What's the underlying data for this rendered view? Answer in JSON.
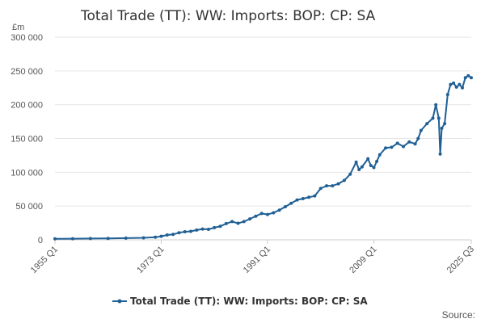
{
  "chart_data": {
    "type": "line",
    "title": "Total Trade (TT): WW: Imports: BOP: CP: SA",
    "ylabel": "£m",
    "xlabel": "",
    "ylim": [
      0,
      300000
    ],
    "yticks": [
      0,
      50000,
      100000,
      150000,
      200000,
      250000,
      300000
    ],
    "ytick_labels": [
      "0",
      "50 000",
      "100 000",
      "150 000",
      "200 000",
      "250 000",
      "300 000"
    ],
    "x_range": [
      "1955 Q1",
      "2025 Q3"
    ],
    "xtick_labels": [
      "1955 Q1",
      "1973 Q1",
      "1991 Q1",
      "2009 Q1",
      "2025 Q3"
    ],
    "grid": true,
    "legend_position": "bottom",
    "series_color": "#206095",
    "series": [
      {
        "name": "Total Trade (TT): WW: Imports: BOP: CP: SA",
        "x": [
          "1955 Q1",
          "1958 Q1",
          "1961 Q1",
          "1964 Q1",
          "1967 Q1",
          "1970 Q1",
          "1972 Q1",
          "1973 Q1",
          "1974 Q1",
          "1975 Q1",
          "1976 Q1",
          "1977 Q1",
          "1978 Q1",
          "1979 Q1",
          "1980 Q1",
          "1981 Q1",
          "1982 Q1",
          "1983 Q1",
          "1984 Q1",
          "1985 Q1",
          "1986 Q1",
          "1987 Q1",
          "1988 Q1",
          "1989 Q1",
          "1990 Q1",
          "1991 Q1",
          "1992 Q1",
          "1993 Q1",
          "1994 Q1",
          "1995 Q1",
          "1996 Q1",
          "1997 Q1",
          "1998 Q1",
          "1999 Q1",
          "2000 Q1",
          "2001 Q1",
          "2002 Q1",
          "2003 Q1",
          "2004 Q1",
          "2005 Q1",
          "2006 Q1",
          "2006 Q3",
          "2007 Q1",
          "2008 Q1",
          "2008 Q3",
          "2009 Q1",
          "2009 Q3",
          "2010 Q1",
          "2011 Q1",
          "2012 Q1",
          "2013 Q1",
          "2014 Q1",
          "2015 Q1",
          "2016 Q1",
          "2016 Q3",
          "2017 Q1",
          "2018 Q1",
          "2019 Q1",
          "2019 Q3",
          "2020 Q1",
          "2020 Q2",
          "2020 Q3",
          "2021 Q1",
          "2021 Q3",
          "2022 Q1",
          "2022 Q3",
          "2023 Q1",
          "2023 Q3",
          "2024 Q1",
          "2024 Q3",
          "2025 Q1",
          "2025 Q3"
        ],
        "values": [
          1500,
          1700,
          1900,
          2100,
          2500,
          3000,
          3800,
          5200,
          7200,
          8000,
          10500,
          12000,
          12500,
          14500,
          16000,
          15500,
          18000,
          20000,
          24000,
          27000,
          24500,
          27000,
          31000,
          35000,
          39000,
          37500,
          40000,
          44000,
          49000,
          54000,
          59000,
          61000,
          63000,
          65000,
          76000,
          80000,
          80000,
          83000,
          88000,
          97000,
          115000,
          104000,
          108000,
          120000,
          110000,
          107000,
          116000,
          126000,
          136000,
          137000,
          143000,
          138000,
          145000,
          142000,
          150000,
          162000,
          172000,
          180000,
          200000,
          180000,
          127000,
          165000,
          172000,
          215000,
          230000,
          232000,
          226000,
          230000,
          225000,
          240000,
          243000,
          240000
        ]
      }
    ],
    "source_label": "Source:"
  }
}
